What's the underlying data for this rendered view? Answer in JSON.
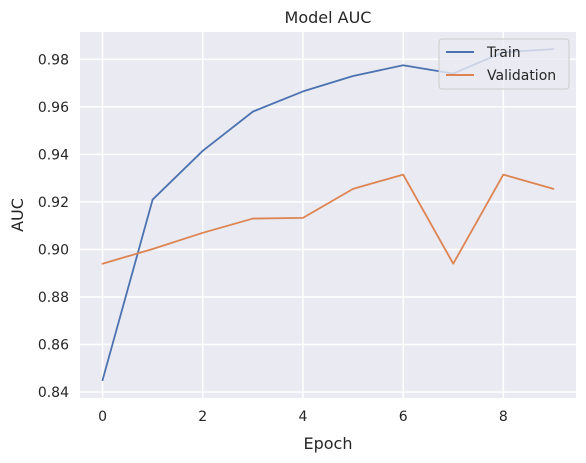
{
  "chart_data": {
    "type": "line",
    "title": "Model AUC",
    "xlabel": "Epoch",
    "ylabel": "AUC",
    "x": [
      0,
      1,
      2,
      3,
      4,
      5,
      6,
      7,
      8,
      9
    ],
    "xlim": [
      -0.45,
      9.45
    ],
    "ylim": [
      0.8375,
      0.9915
    ],
    "xticks": [
      0,
      2,
      4,
      6,
      8
    ],
    "yticks": [
      0.84,
      0.86,
      0.88,
      0.9,
      0.92,
      0.94,
      0.96,
      0.98
    ],
    "grid": true,
    "legend_position": "top-right",
    "series": [
      {
        "name": "Train",
        "color": "#4c72b0",
        "values": [
          0.845,
          0.921,
          0.9415,
          0.958,
          0.9665,
          0.973,
          0.9775,
          0.974,
          0.983,
          0.9843
        ]
      },
      {
        "name": "Validation",
        "color": "#dd8452",
        "values": [
          0.894,
          0.9002,
          0.907,
          0.913,
          0.9133,
          0.9255,
          0.9315,
          0.894,
          0.9315,
          0.9255
        ]
      }
    ]
  }
}
